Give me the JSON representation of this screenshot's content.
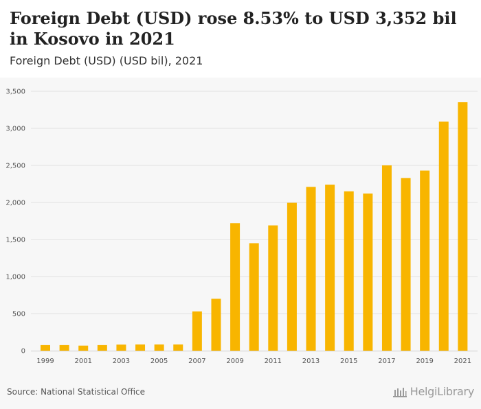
{
  "header": {
    "title": "Foreign Debt (USD) rose 8.53% to USD 3,352 bil in Kosovo in 2021",
    "subtitle": "Foreign Debt (USD) (USD bil), 2021"
  },
  "footer": {
    "source": "Source: National Statistical Office",
    "logo_text": "HelgiLibrary"
  },
  "colors": {
    "bar": "#f8b500",
    "grid": "#e2e2e2",
    "axis_text": "#555555"
  },
  "chart_data": {
    "type": "bar",
    "categories": [
      "1999",
      "2000",
      "2001",
      "2002",
      "2003",
      "2004",
      "2005",
      "2006",
      "2007",
      "2008",
      "2009",
      "2010",
      "2011",
      "2012",
      "2013",
      "2014",
      "2015",
      "2016",
      "2017",
      "2018",
      "2019",
      "2020",
      "2021"
    ],
    "values": [
      75,
      75,
      68,
      75,
      82,
      84,
      84,
      84,
      530,
      700,
      1720,
      1450,
      1690,
      1995,
      2210,
      2240,
      2150,
      2120,
      2500,
      2330,
      2430,
      3090,
      3352
    ],
    "x_tick_labels": [
      "1999",
      "2001",
      "2003",
      "2005",
      "2007",
      "2009",
      "2011",
      "2013",
      "2015",
      "2017",
      "2019",
      "2021"
    ],
    "y_ticks": [
      "0",
      "500",
      "1,000",
      "1,500",
      "2,000",
      "2,500",
      "3,000",
      "3,500"
    ],
    "ylim": [
      0,
      3500
    ],
    "grid": true,
    "legend": "none"
  }
}
